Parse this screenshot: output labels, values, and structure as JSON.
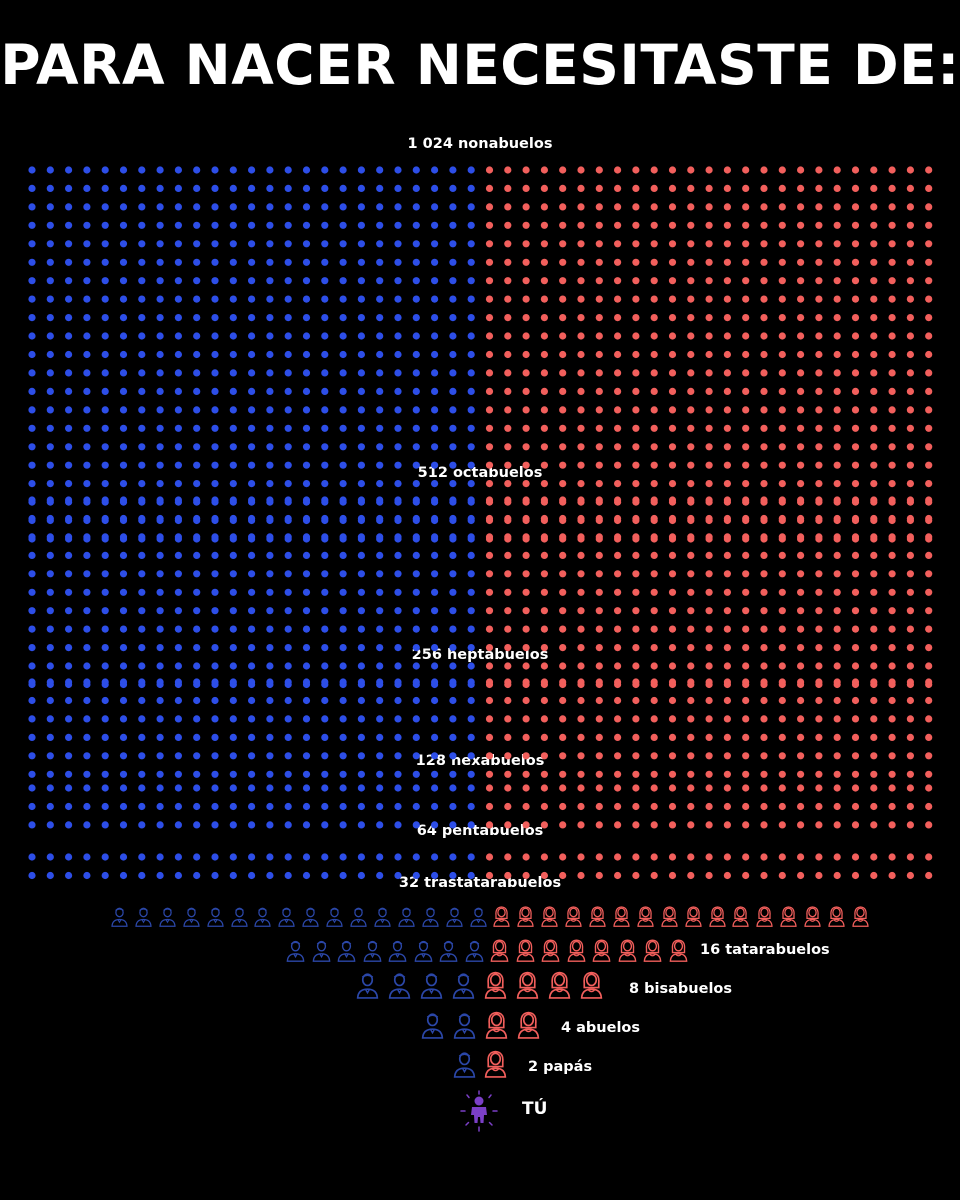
{
  "title": "PARA NACER NECESITASTE DE:",
  "colors": {
    "male": "#2d4ee8",
    "female": "#f25f5c",
    "male_icon": "#2b47a8",
    "female_icon": "#f25f5c",
    "you": "#7b3fc7",
    "background": "#000000"
  },
  "generations": [
    {
      "label": "1 024 nonabuelos",
      "count": 1024
    },
    {
      "label": "512 octabuelos",
      "count": 512
    },
    {
      "label": "256 heptabuelos",
      "count": 256
    },
    {
      "label": "128 hexabuelos",
      "count": 128
    },
    {
      "label": "64 pentabuelos",
      "count": 64
    },
    {
      "label": "32 trastatarabuelos",
      "count": 32
    },
    {
      "label": "16 tatarabuelos",
      "count": 16
    },
    {
      "label": "8 bisabuelos",
      "count": 8
    },
    {
      "label": "4 abuelos",
      "count": 4
    },
    {
      "label": "2 papás",
      "count": 2
    }
  ],
  "you": {
    "label": "TÚ",
    "icon": "person-glow-icon"
  },
  "icons": {
    "male": "man-bust-icon",
    "female": "woman-bust-icon",
    "dot": "dot-icon"
  }
}
